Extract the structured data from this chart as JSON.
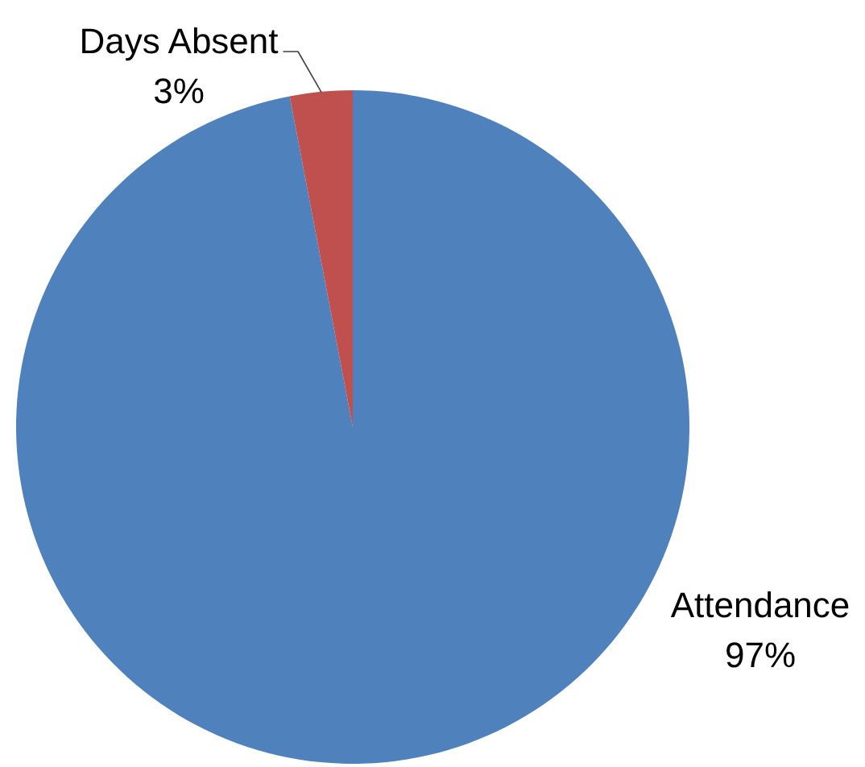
{
  "chart_data": {
    "type": "pie",
    "categories": [
      "Attendance",
      "Days Absent"
    ],
    "values": [
      97,
      3
    ],
    "colors": [
      "#4f81bd",
      "#c0504d"
    ],
    "value_labels": [
      "97%",
      "3%"
    ]
  }
}
